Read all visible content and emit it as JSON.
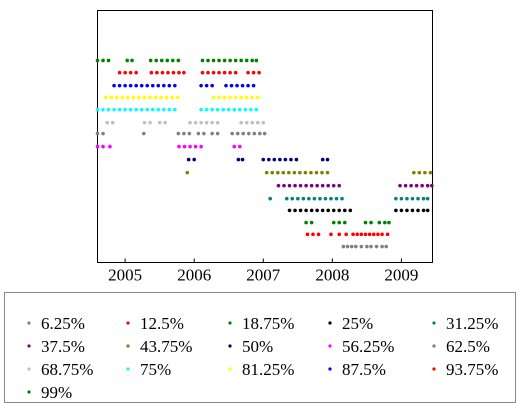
{
  "chart_data": {
    "type": "scatter",
    "xlim": [
      2004.6,
      2009.45
    ],
    "xticks": [
      2005,
      2006,
      2007,
      2008,
      2009
    ],
    "ylim": [
      0,
      6
    ],
    "legend": "below",
    "series": [
      {
        "name": "6.25%",
        "color": "#808080",
        "x": [
          2008.16,
          2008.22,
          2008.28,
          2008.34,
          2008.42,
          2008.5,
          2008.56,
          2008.64,
          2008.72,
          2008.78
        ],
        "values": [
          0.38,
          0.38,
          0.38,
          0.38,
          0.38,
          0.38,
          0.38,
          0.38,
          0.38,
          0.38
        ]
      },
      {
        "name": "12.5%",
        "color": "#ff0000",
        "x": [
          2007.64,
          2007.72,
          2007.8,
          2007.98,
          2008.1,
          2008.2,
          2008.3,
          2008.36,
          2008.42,
          2008.48,
          2008.54,
          2008.6,
          2008.66,
          2008.72,
          2008.8
        ],
        "values": [
          0.67,
          0.67,
          0.67,
          0.67,
          0.67,
          0.67,
          0.67,
          0.67,
          0.67,
          0.67,
          0.67,
          0.67,
          0.67,
          0.67,
          0.67
        ]
      },
      {
        "name": "18.75%",
        "color": "#008000",
        "x": [
          2007.62,
          2007.7,
          2008.02,
          2008.1,
          2008.18,
          2008.48,
          2008.56,
          2008.68,
          2008.76,
          2008.82
        ],
        "values": [
          0.95,
          0.95,
          0.95,
          0.95,
          0.95,
          0.95,
          0.95,
          0.95,
          0.95,
          0.95
        ]
      },
      {
        "name": "25%",
        "color": "#000000",
        "x": [
          2007.38,
          2007.46,
          2007.54,
          2007.62,
          2007.7,
          2007.78,
          2007.86,
          2007.94,
          2008.02,
          2008.1,
          2008.18,
          2008.26,
          2008.92,
          2009.0,
          2009.08,
          2009.16,
          2009.24,
          2009.32,
          2009.38
        ],
        "values": [
          1.24,
          1.24,
          1.24,
          1.24,
          1.24,
          1.24,
          1.24,
          1.24,
          1.24,
          1.24,
          1.24,
          1.24,
          1.24,
          1.24,
          1.24,
          1.24,
          1.24,
          1.24,
          1.24
        ]
      },
      {
        "name": "31.25%",
        "color": "#008080",
        "x": [
          2007.1,
          2007.34,
          2007.42,
          2007.5,
          2007.58,
          2007.66,
          2007.74,
          2007.82,
          2007.9,
          2007.98,
          2008.06,
          2008.14,
          2008.92,
          2009.0,
          2009.08,
          2009.16,
          2009.24,
          2009.32,
          2009.38
        ],
        "values": [
          1.52,
          1.52,
          1.52,
          1.52,
          1.52,
          1.52,
          1.52,
          1.52,
          1.52,
          1.52,
          1.52,
          1.52,
          1.52,
          1.52,
          1.52,
          1.52,
          1.52,
          1.52,
          1.52
        ]
      },
      {
        "name": "37.5%",
        "color": "#800080",
        "x": [
          2007.22,
          2007.3,
          2007.38,
          2007.46,
          2007.54,
          2007.62,
          2007.7,
          2007.78,
          2007.86,
          2007.94,
          2008.02,
          2008.1,
          2008.98,
          2009.06,
          2009.14,
          2009.22,
          2009.3,
          2009.38,
          2009.44
        ],
        "values": [
          1.83,
          1.83,
          1.83,
          1.83,
          1.83,
          1.83,
          1.83,
          1.83,
          1.83,
          1.83,
          1.83,
          1.83,
          1.83,
          1.83,
          1.83,
          1.83,
          1.83,
          1.83,
          1.83
        ]
      },
      {
        "name": "43.75%",
        "color": "#808000",
        "x": [
          2005.9,
          2007.05,
          2007.13,
          2007.21,
          2007.29,
          2007.37,
          2007.45,
          2007.53,
          2007.61,
          2007.69,
          2007.77,
          2007.85,
          2007.93,
          2009.18,
          2009.26,
          2009.34,
          2009.42
        ],
        "values": [
          2.14,
          2.14,
          2.14,
          2.14,
          2.14,
          2.14,
          2.14,
          2.14,
          2.14,
          2.14,
          2.14,
          2.14,
          2.14,
          2.14,
          2.14,
          2.14,
          2.14
        ]
      },
      {
        "name": "50%",
        "color": "#000080",
        "x": [
          2005.92,
          2006.0,
          2006.64,
          2006.7,
          2007.0,
          2007.08,
          2007.16,
          2007.24,
          2007.32,
          2007.4,
          2007.48,
          2007.86,
          2007.93
        ],
        "values": [
          2.45,
          2.45,
          2.45,
          2.45,
          2.45,
          2.45,
          2.45,
          2.45,
          2.45,
          2.45,
          2.45,
          2.45,
          2.45
        ]
      },
      {
        "name": "56.25%",
        "color": "#ff00ff",
        "x": [
          2004.6,
          2004.68,
          2004.78,
          2005.78,
          2005.86,
          2005.94,
          2006.02,
          2006.1,
          2006.58,
          2006.66
        ],
        "values": [
          2.76,
          2.76,
          2.76,
          2.76,
          2.76,
          2.76,
          2.76,
          2.76,
          2.76,
          2.76
        ]
      },
      {
        "name": "62.5%",
        "color": "#808080",
        "x": [
          2004.6,
          2004.68,
          2005.27,
          2005.77,
          2005.85,
          2005.93,
          2006.06,
          2006.14,
          2006.26,
          2006.34,
          2006.55,
          2006.63,
          2006.71,
          2006.79,
          2006.87,
          2006.95,
          2007.02
        ],
        "values": [
          3.07,
          3.07,
          3.07,
          3.07,
          3.07,
          3.07,
          3.07,
          3.07,
          3.07,
          3.07,
          3.07,
          3.07,
          3.07,
          3.07,
          3.07,
          3.07,
          3.07
        ]
      },
      {
        "name": "68.75%",
        "color": "#c0c0c0",
        "x": [
          2004.74,
          2004.82,
          2005.28,
          2005.36,
          2005.5,
          2005.58,
          2005.94,
          2006.02,
          2006.1,
          2006.18,
          2006.26,
          2006.34,
          2006.68,
          2006.76,
          2006.84,
          2006.92,
          2007.0
        ],
        "values": [
          3.33,
          3.33,
          3.33,
          3.33,
          3.33,
          3.33,
          3.33,
          3.33,
          3.33,
          3.33,
          3.33,
          3.33,
          3.33,
          3.33,
          3.33,
          3.33,
          3.33
        ]
      },
      {
        "name": "75%",
        "color": "#00ffff",
        "x": [
          2004.6,
          2004.68,
          2004.76,
          2004.84,
          2004.92,
          2005.0,
          2005.08,
          2005.16,
          2005.24,
          2005.32,
          2005.4,
          2005.48,
          2005.56,
          2005.64,
          2005.72,
          2006.1,
          2006.18,
          2006.26,
          2006.34,
          2006.42,
          2006.5,
          2006.58,
          2006.66,
          2006.74,
          2006.82,
          2006.9
        ],
        "values": [
          3.64,
          3.64,
          3.64,
          3.64,
          3.64,
          3.64,
          3.64,
          3.64,
          3.64,
          3.64,
          3.64,
          3.64,
          3.64,
          3.64,
          3.64,
          3.64,
          3.64,
          3.64,
          3.64,
          3.64,
          3.64,
          3.64,
          3.64,
          3.64,
          3.64,
          3.64
        ]
      },
      {
        "name": "81.25%",
        "color": "#ffff00",
        "x": [
          2004.72,
          2004.8,
          2004.88,
          2004.96,
          2005.04,
          2005.12,
          2005.2,
          2005.28,
          2005.36,
          2005.44,
          2005.52,
          2005.6,
          2005.68,
          2005.76,
          2006.28,
          2006.36,
          2006.44,
          2006.52,
          2006.6,
          2006.68,
          2006.76,
          2006.84,
          2006.92
        ],
        "values": [
          3.93,
          3.93,
          3.93,
          3.93,
          3.93,
          3.93,
          3.93,
          3.93,
          3.93,
          3.93,
          3.93,
          3.93,
          3.93,
          3.93,
          3.93,
          3.93,
          3.93,
          3.93,
          3.93,
          3.93,
          3.93,
          3.93,
          3.93
        ]
      },
      {
        "name": "87.5%",
        "color": "#0000ff",
        "x": [
          2004.84,
          2004.92,
          2005.0,
          2005.08,
          2005.16,
          2005.24,
          2005.32,
          2005.4,
          2005.48,
          2005.56,
          2005.64,
          2005.72,
          2006.1,
          2006.18,
          2006.26,
          2006.46,
          2006.54,
          2006.62,
          2006.7,
          2006.78,
          2006.86
        ],
        "values": [
          4.21,
          4.21,
          4.21,
          4.21,
          4.21,
          4.21,
          4.21,
          4.21,
          4.21,
          4.21,
          4.21,
          4.21,
          4.21,
          4.21,
          4.21,
          4.21,
          4.21,
          4.21,
          4.21,
          4.21,
          4.21
        ]
      },
      {
        "name": "93.75%",
        "color": "#ff0000",
        "x": [
          2004.92,
          2005.0,
          2005.08,
          2005.16,
          2005.38,
          2005.46,
          2005.54,
          2005.62,
          2005.7,
          2005.78,
          2005.85,
          2006.12,
          2006.2,
          2006.28,
          2006.36,
          2006.44,
          2006.52,
          2006.6,
          2006.78,
          2006.86,
          2006.94
        ],
        "values": [
          4.52,
          4.52,
          4.52,
          4.52,
          4.52,
          4.52,
          4.52,
          4.52,
          4.52,
          4.52,
          4.52,
          4.52,
          4.52,
          4.52,
          4.52,
          4.52,
          4.52,
          4.52,
          4.52,
          4.52,
          4.52
        ]
      },
      {
        "name": "99%",
        "color": "#008000",
        "x": [
          2004.6,
          2004.68,
          2004.76,
          2005.03,
          2005.1,
          2005.37,
          2005.45,
          2005.53,
          2005.61,
          2005.69,
          2005.77,
          2006.12,
          2006.2,
          2006.28,
          2006.36,
          2006.44,
          2006.52,
          2006.6,
          2006.68,
          2006.76,
          2006.84,
          2006.9
        ],
        "values": [
          4.81,
          4.81,
          4.81,
          4.81,
          4.81,
          4.81,
          4.81,
          4.81,
          4.81,
          4.81,
          4.81,
          4.81,
          4.81,
          4.81,
          4.81,
          4.81,
          4.81,
          4.81,
          4.81,
          4.81,
          4.81,
          4.81
        ]
      }
    ]
  }
}
